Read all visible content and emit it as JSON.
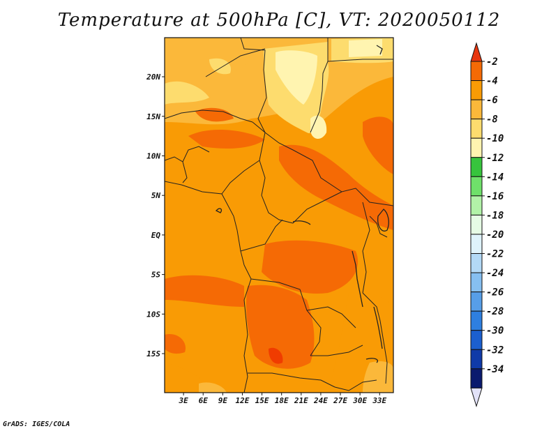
{
  "title": "Temperature at 500hPa [C], VT: 2020050112",
  "credit": "GrADS: IGES/COLA",
  "map": {
    "lat_labels": [
      "20N",
      "15N",
      "10N",
      "5N",
      "EQ",
      "5S",
      "10S",
      "15S"
    ],
    "lat_values": [
      20,
      15,
      10,
      5,
      0,
      -5,
      -10,
      -15
    ],
    "lon_labels": [
      "3E",
      "6E",
      "9E",
      "12E",
      "15E",
      "18E",
      "21E",
      "24E",
      "27E",
      "30E",
      "33E"
    ],
    "lon_values": [
      3,
      6,
      9,
      12,
      15,
      18,
      21,
      24,
      27,
      30,
      33
    ],
    "lon_range": [
      0,
      35
    ],
    "lat_range": [
      -20,
      25
    ]
  },
  "colorbar": {
    "labels": [
      "-2",
      "-4",
      "-6",
      "-8",
      "-10",
      "-12",
      "-14",
      "-16",
      "-18",
      "-20",
      "-22",
      "-24",
      "-26",
      "-28",
      "-30",
      "-32",
      "-34"
    ],
    "colors": [
      "#f03c00",
      "#f56a05",
      "#f99b05",
      "#fbb83a",
      "#fddc6e",
      "#fff4b0",
      "#37c43d",
      "#6fe06a",
      "#b2f2a8",
      "#e6fbe5",
      "#dff3fb",
      "#b3d9f6",
      "#86bff0",
      "#579ee8",
      "#2e7fe0",
      "#1b5fcf",
      "#0f3aa8",
      "#0a1a6e"
    ],
    "top_arrow_color": "#e8360e",
    "bottom_arrow_color": "#e2e2f8"
  }
}
